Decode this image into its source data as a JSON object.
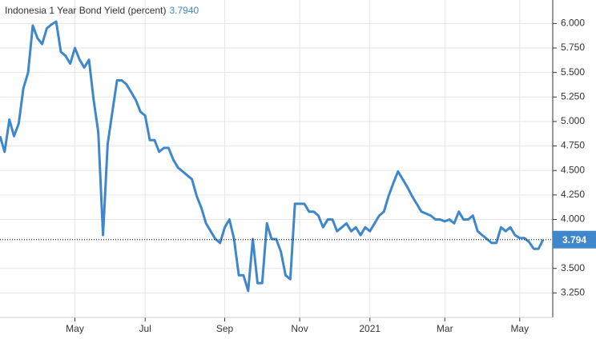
{
  "chart_data": {
    "type": "line",
    "title": "Indonesia 1 Year Bond Yield (percent)",
    "last": {
      "value": 3.794,
      "label": "3.7940"
    },
    "color": "#3f87cc",
    "categories": [
      null,
      null,
      null,
      null,
      null,
      null,
      null,
      null,
      null,
      null,
      null,
      null,
      null,
      null,
      null,
      null,
      "May",
      null,
      null,
      null,
      null,
      null,
      null,
      null,
      null,
      null,
      null,
      null,
      null,
      null,
      null,
      "Jul",
      null,
      null,
      null,
      null,
      null,
      null,
      null,
      null,
      null,
      null,
      null,
      null,
      null,
      null,
      null,
      null,
      "Sep",
      null,
      null,
      null,
      null,
      null,
      null,
      null,
      null,
      null,
      null,
      null,
      null,
      null,
      null,
      null,
      "Nov",
      null,
      null,
      null,
      null,
      null,
      null,
      null,
      null,
      null,
      null,
      null,
      null,
      null,
      null,
      "2021",
      null,
      null,
      null,
      null,
      null,
      null,
      null,
      null,
      null,
      null,
      null,
      null,
      null,
      null,
      null,
      "Mar",
      null,
      null,
      null,
      null,
      null,
      null,
      null,
      null,
      null,
      null,
      null,
      null,
      null,
      null,
      null,
      "May",
      null,
      null,
      null,
      null,
      null
    ],
    "values": [
      4.85,
      4.69,
      5.02,
      4.85,
      4.98,
      5.34,
      5.5,
      5.98,
      5.85,
      5.79,
      5.95,
      5.99,
      6.02,
      5.71,
      5.67,
      5.59,
      5.75,
      5.63,
      5.55,
      5.63,
      5.22,
      4.89,
      3.84,
      4.77,
      5.1,
      5.42,
      5.42,
      5.38,
      5.3,
      5.22,
      5.1,
      5.06,
      4.81,
      4.81,
      4.69,
      4.73,
      4.73,
      4.61,
      4.53,
      4.49,
      4.45,
      4.41,
      4.24,
      4.12,
      3.96,
      3.88,
      3.8,
      3.76,
      3.92,
      4.0,
      3.8,
      3.43,
      3.43,
      3.27,
      3.8,
      3.35,
      3.35,
      3.96,
      3.8,
      3.8,
      3.67,
      3.43,
      3.39,
      4.16,
      4.16,
      4.16,
      4.08,
      4.08,
      4.04,
      3.92,
      4.0,
      4.0,
      3.88,
      3.92,
      3.96,
      3.88,
      3.92,
      3.84,
      3.92,
      3.88,
      3.96,
      4.04,
      4.08,
      4.24,
      4.37,
      4.49,
      4.41,
      4.33,
      4.24,
      4.16,
      4.08,
      4.06,
      4.04,
      4.0,
      4.0,
      3.98,
      4.0,
      3.96,
      4.08,
      4.0,
      4.0,
      4.04,
      3.88,
      3.84,
      3.8,
      3.76,
      3.76,
      3.92,
      3.88,
      3.92,
      3.84,
      3.81,
      3.81,
      3.77,
      3.7,
      3.7,
      3.794
    ],
    "ylim": [
      3.0,
      6.24
    ],
    "yticks": [
      {
        "value": 3.25,
        "label": "3.250"
      },
      {
        "value": 3.5,
        "label": "3.500"
      },
      {
        "value": 4,
        "label": "4.000"
      },
      {
        "value": 4.25,
        "label": "4.250"
      },
      {
        "value": 4.5,
        "label": "4.500"
      },
      {
        "value": 4.75,
        "label": "4.750"
      },
      {
        "value": 5,
        "label": "5.000"
      },
      {
        "value": 5.25,
        "label": "5.250"
      },
      {
        "value": 5.5,
        "label": "5.500"
      },
      {
        "value": 5.75,
        "label": "5.750"
      },
      {
        "value": 6,
        "label": "6.000"
      }
    ],
    "grid": true
  }
}
